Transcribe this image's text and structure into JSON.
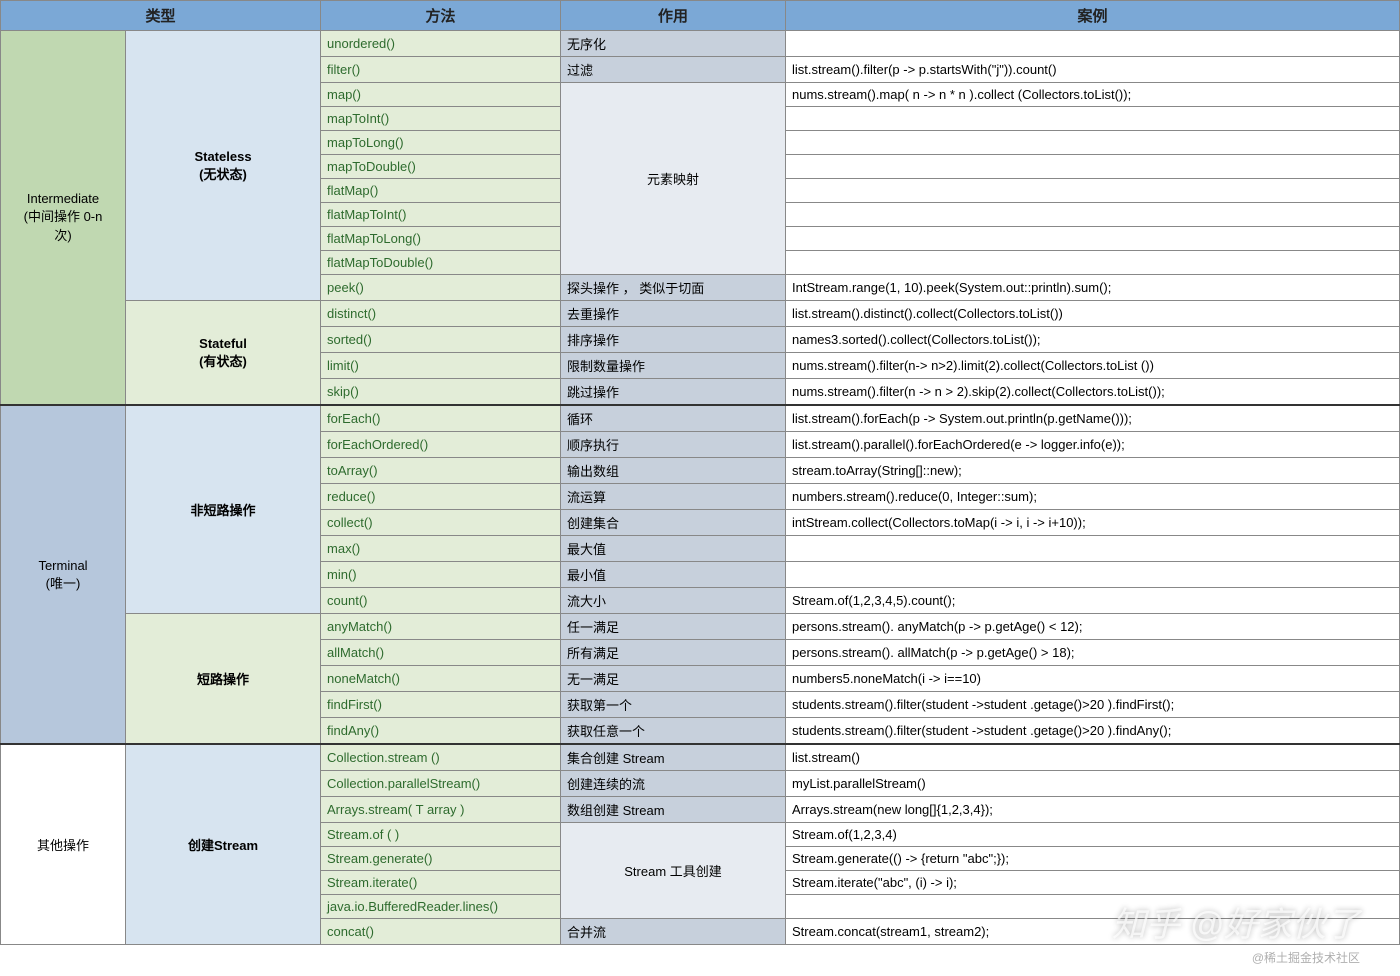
{
  "headers": [
    "类型",
    "方法",
    "作用",
    "案例"
  ],
  "watermark_main": "知乎 @好家伙了",
  "watermark_sub": "@稀土掘金技术社区",
  "colors": {
    "header_bg": "#7ba8d6",
    "type_green": "#c0d8b1",
    "type_blue": "#b6c7dc",
    "kind_blue": "#d7e4f0",
    "kind_green": "#e3edd8",
    "method_text": "#2e6b2e",
    "action_dark": "#c7d0dc",
    "action_light": "#e7ebf1",
    "border": "#888888"
  },
  "sections": [
    {
      "type_label": "Intermediate\n(中间操作 0-n\n次)",
      "type_class": "c-type-a",
      "groups": [
        {
          "kind_label": "Stateless\n(无状态)",
          "kind_class": "c-kind-a",
          "rows": [
            {
              "method": "unordered()",
              "action": "无序化",
              "action_class": "c-action-a",
              "example": ""
            },
            {
              "method": "filter()",
              "action": "过滤",
              "action_class": "c-action-a",
              "example": "list.stream().filter(p -> p.startsWith(\"j\")).count()"
            },
            {
              "method": "map()",
              "action_merge_start": true,
              "action_merge_span": 8,
              "action": "元素映射",
              "action_class": "c-action-c",
              "example": "nums.stream().map( n -> n * n ).collect (Collectors.toList());"
            },
            {
              "method": "mapToInt()",
              "example": ""
            },
            {
              "method": "mapToLong()",
              "example": ""
            },
            {
              "method": "mapToDouble()",
              "example": ""
            },
            {
              "method": "flatMap()",
              "example": ""
            },
            {
              "method": "flatMapToInt()",
              "example": ""
            },
            {
              "method": "flatMapToLong()",
              "example": ""
            },
            {
              "method": "flatMapToDouble()",
              "example": ""
            },
            {
              "method": "peek()",
              "action": "探头操作 ， 类似于切面",
              "action_class": "c-action-a",
              "example": "IntStream.range(1, 10).peek(System.out::println).sum();"
            }
          ]
        },
        {
          "kind_label": "Stateful\n(有状态)",
          "kind_class": "c-kind-b",
          "rows": [
            {
              "method": "distinct()",
              "action": "去重操作",
              "action_class": "c-action-a",
              "example": "list.stream().distinct().collect(Collectors.toList())"
            },
            {
              "method": "sorted()",
              "action": "排序操作",
              "action_class": "c-action-a",
              "example": "names3.sorted().collect(Collectors.toList());"
            },
            {
              "method": "limit()",
              "action": "限制数量操作",
              "action_class": "c-action-a",
              "example": "nums.stream().filter(n-> n>2).limit(2).collect(Collectors.toList ())"
            },
            {
              "method": "skip()",
              "action": "跳过操作",
              "action_class": "c-action-a",
              "example": "nums.stream().filter(n -> n > 2).skip(2).collect(Collectors.toList());"
            }
          ]
        }
      ]
    },
    {
      "type_label": "Terminal\n(唯一)",
      "type_class": "c-type-b",
      "thick": true,
      "groups": [
        {
          "kind_label": "非短路操作",
          "kind_class": "c-kind-a",
          "rows": [
            {
              "method": "forEach()",
              "action": "循环",
              "action_class": "c-action-a",
              "example": "list.stream().forEach(p -> System.out.println(p.getName()));"
            },
            {
              "method": "forEachOrdered()",
              "action": "顺序执行",
              "action_class": "c-action-a",
              "example": "list.stream().parallel().forEachOrdered(e -> logger.info(e));"
            },
            {
              "method": "toArray()",
              "action": "输出数组",
              "action_class": "c-action-a",
              "example": "stream.toArray(String[]::new);"
            },
            {
              "method": "reduce()",
              "action": "流运算",
              "action_class": "c-action-a",
              "example": "numbers.stream().reduce(0, Integer::sum);"
            },
            {
              "method": "collect()",
              "action": "创建集合",
              "action_class": "c-action-a",
              "example": "intStream.collect(Collectors.toMap(i -> i, i -> i+10));"
            },
            {
              "method": "max()",
              "action": "最大值",
              "action_class": "c-action-a",
              "example": ""
            },
            {
              "method": "min()",
              "action": "最小值",
              "action_class": "c-action-a",
              "example": ""
            },
            {
              "method": "count()",
              "action": "流大小",
              "action_class": "c-action-a",
              "example": "Stream.of(1,2,3,4,5).count();"
            }
          ]
        },
        {
          "kind_label": "短路操作",
          "kind_class": "c-kind-b",
          "rows": [
            {
              "method": "anyMatch()",
              "action": "任一满足",
              "action_class": "c-action-a",
              "example": "persons.stream(). anyMatch(p -> p.getAge() < 12);"
            },
            {
              "method": "allMatch()",
              "action": "所有满足",
              "action_class": "c-action-a",
              "example": "persons.stream(). allMatch(p -> p.getAge() > 18);"
            },
            {
              "method": "noneMatch()",
              "action": "无一满足",
              "action_class": "c-action-a",
              "example": "numbers5.noneMatch(i -> i==10)"
            },
            {
              "method": "findFirst()",
              "action": "获取第一个",
              "action_class": "c-action-a",
              "example": "students.stream().filter(student ->student .getage()>20 ).findFirst();"
            },
            {
              "method": "findAny()",
              "action": "获取任意一个",
              "action_class": "c-action-a",
              "example": "students.stream().filter(student ->student .getage()>20 ).findAny();"
            }
          ]
        }
      ]
    },
    {
      "type_label": "其他操作",
      "type_class": "c-type-c",
      "thick": true,
      "groups": [
        {
          "kind_label": "创建Stream",
          "kind_class": "c-kind-a",
          "rows": [
            {
              "method": "Collection.stream ()",
              "action": "集合创建 Stream",
              "action_class": "c-action-a",
              "example": "list.stream()"
            },
            {
              "method": "Collection.parallelStream()",
              "action": "创建连续的流",
              "action_class": "c-action-a",
              "example": "myList.parallelStream()"
            },
            {
              "method": "Arrays.stream( T array )",
              "action": "数组创建 Stream",
              "action_class": "c-action-a",
              "example": "Arrays.stream(new long[]{1,2,3,4});"
            },
            {
              "method": "Stream.of ( )",
              "action_merge_start": true,
              "action_merge_span": 4,
              "action": "Stream 工具创建",
              "action_class": "c-action-c",
              "example": "Stream.of(1,2,3,4)"
            },
            {
              "method": "Stream.generate()",
              "example": "Stream.generate(() -> {return \"abc\";});"
            },
            {
              "method": "Stream.iterate()",
              "example": "Stream.iterate(\"abc\", (i) -> i);"
            },
            {
              "method": "java.io.BufferedReader.lines()",
              "example": ""
            },
            {
              "method": "concat()",
              "action": "合并流",
              "action_class": "c-action-a",
              "example": "Stream.concat(stream1, stream2);"
            }
          ]
        }
      ]
    }
  ]
}
